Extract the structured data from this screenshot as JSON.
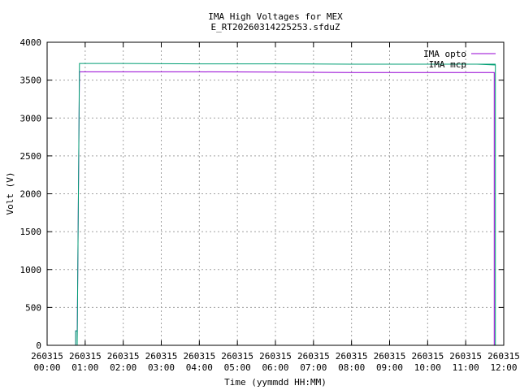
{
  "chart_data": {
    "type": "line",
    "title": "IMA High Voltages for MEX",
    "subtitle": "E_RT20260314225253.sfduZ",
    "xlabel": "Time (yymmdd HH:MM)",
    "ylabel": "Volt (V)",
    "xlim": [
      0,
      12
    ],
    "ylim": [
      0,
      4000
    ],
    "yticks": [
      0,
      500,
      1000,
      1500,
      2000,
      2500,
      3000,
      3500,
      4000
    ],
    "xticks": [
      {
        "value": 0,
        "date": "260315",
        "time": "00:00"
      },
      {
        "value": 1,
        "date": "260315",
        "time": "01:00"
      },
      {
        "value": 2,
        "date": "260315",
        "time": "02:00"
      },
      {
        "value": 3,
        "date": "260315",
        "time": "03:00"
      },
      {
        "value": 4,
        "date": "260315",
        "time": "04:00"
      },
      {
        "value": 5,
        "date": "260315",
        "time": "05:00"
      },
      {
        "value": 6,
        "date": "260315",
        "time": "06:00"
      },
      {
        "value": 7,
        "date": "260315",
        "time": "07:00"
      },
      {
        "value": 8,
        "date": "260315",
        "time": "08:00"
      },
      {
        "value": 9,
        "date": "260315",
        "time": "09:00"
      },
      {
        "value": 10,
        "date": "260315",
        "time": "10:00"
      },
      {
        "value": 11,
        "date": "260315",
        "time": "11:00"
      },
      {
        "value": 12,
        "date": "260315",
        "time": "12:00"
      }
    ],
    "grid": true,
    "legend_position": "top-right",
    "series": [
      {
        "name": "IMA opto",
        "color": "#9400d3",
        "x": [
          0.75,
          0.75,
          0.79,
          0.79,
          0.85,
          2,
          4,
          6,
          8,
          10,
          11.3,
          11.75,
          11.75
        ],
        "y": [
          0,
          190,
          190,
          90,
          3610,
          3610,
          3610,
          3605,
          3600,
          3600,
          3600,
          3600,
          0
        ]
      },
      {
        "name": "IMA mcp",
        "color": "#009e73",
        "x": [
          0.75,
          0.75,
          0.79,
          0.79,
          0.85,
          2,
          4,
          6,
          8,
          10,
          11.3,
          11.78,
          11.78
        ],
        "y": [
          0,
          190,
          190,
          0,
          3720,
          3720,
          3715,
          3715,
          3710,
          3710,
          3710,
          3700,
          0
        ]
      }
    ]
  }
}
